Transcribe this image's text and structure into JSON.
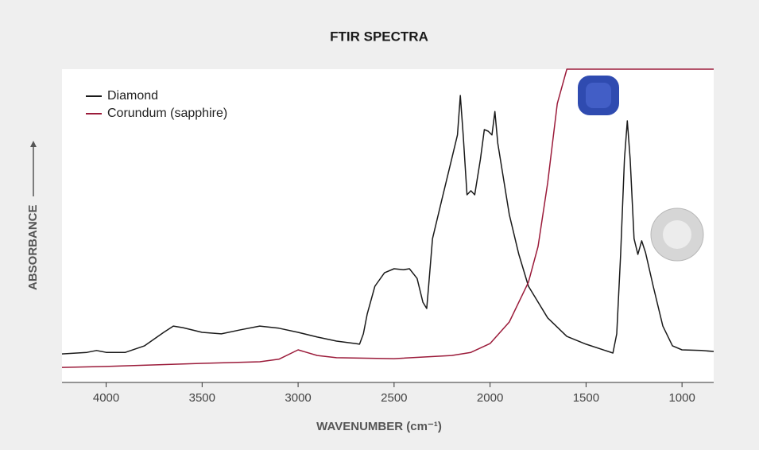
{
  "chart_data": {
    "type": "line",
    "title": "FTIR SPECTRA",
    "x_label": "WAVENUMBER (cm⁻¹)",
    "y_label": "ABSORBANCE",
    "xlim": [
      4230,
      835
    ],
    "xticks": [
      4000,
      3500,
      3000,
      2500,
      2000,
      1500,
      1000
    ],
    "ylim": [
      0,
      100
    ],
    "legend": "upper left",
    "series": [
      {
        "name": "Diamond",
        "color": "#1a1a1a",
        "x": [
          4230,
          4100,
          4050,
          4000,
          3900,
          3800,
          3700,
          3650,
          3600,
          3500,
          3400,
          3300,
          3200,
          3100,
          3000,
          2900,
          2800,
          2700,
          2680,
          2660,
          2640,
          2600,
          2550,
          2500,
          2450,
          2420,
          2380,
          2350,
          2330,
          2320,
          2300,
          2250,
          2200,
          2170,
          2155,
          2140,
          2120,
          2100,
          2080,
          2050,
          2030,
          2010,
          1990,
          1975,
          1960,
          1900,
          1850,
          1800,
          1700,
          1600,
          1500,
          1400,
          1360,
          1340,
          1320,
          1300,
          1285,
          1270,
          1250,
          1230,
          1210,
          1190,
          1150,
          1100,
          1050,
          1000,
          900,
          835
        ],
        "values": [
          9.1,
          9.6,
          10.2,
          9.6,
          9.6,
          11.7,
          16,
          18,
          17.5,
          16,
          15.5,
          16.8,
          18,
          17.3,
          16,
          14.5,
          13.2,
          12.4,
          12.2,
          15.5,
          21.8,
          30.7,
          35,
          36.3,
          36,
          36.3,
          33.2,
          25.6,
          23.6,
          30.7,
          45.9,
          58.6,
          71.3,
          79,
          91.6,
          79,
          59.9,
          61.2,
          59.9,
          71.3,
          80.7,
          80.2,
          79,
          86.5,
          76.4,
          53.6,
          40.9,
          30.7,
          20.6,
          14.7,
          12.2,
          10.2,
          9.4,
          15.5,
          40.9,
          71.3,
          83.5,
          71.3,
          45.9,
          40.9,
          45.2,
          41.4,
          30.7,
          18,
          11.7,
          10.4,
          10.2,
          9.9
        ]
      },
      {
        "name": "Corundum (sapphire)",
        "color": "#9b1b3a",
        "x": [
          4230,
          4000,
          3500,
          3200,
          3100,
          3000,
          2900,
          2800,
          2500,
          2200,
          2100,
          2000,
          1900,
          1800,
          1750,
          1700,
          1650,
          1600,
          835
        ],
        "values": [
          4.8,
          5.1,
          6.1,
          6.6,
          7.4,
          10.4,
          8.6,
          7.9,
          7.6,
          8.6,
          9.6,
          12.4,
          19.3,
          32,
          43.4,
          63.7,
          89,
          100,
          100
        ]
      }
    ]
  }
}
